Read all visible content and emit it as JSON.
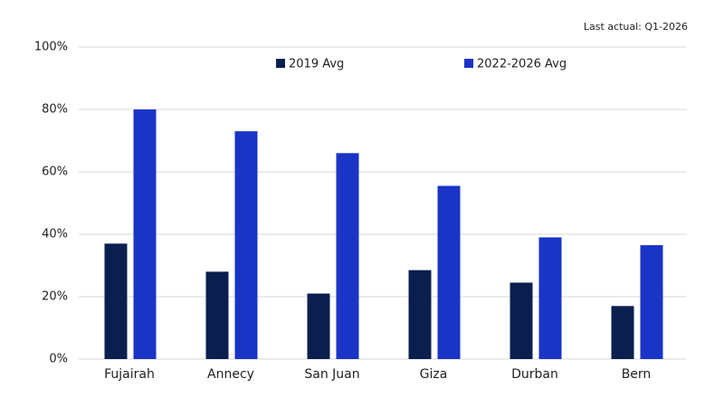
{
  "chart_data": {
    "type": "bar",
    "annotation": "Last actual: Q1-2026",
    "categories": [
      "Fujairah",
      "Annecy",
      "San Juan",
      "Giza",
      "Durban",
      "Bern"
    ],
    "series": [
      {
        "name": "2019 Avg",
        "color": "#0b1f4f",
        "values": [
          37,
          28,
          21,
          28.5,
          24.5,
          17
        ]
      },
      {
        "name": "2022-2026 Avg",
        "color": "#1a34c6",
        "values": [
          80,
          73,
          66,
          55.5,
          39,
          36.5
        ]
      }
    ],
    "ylim": [
      0,
      100
    ],
    "yticks": [
      {
        "value": 0,
        "label": "0%"
      },
      {
        "value": 20,
        "label": "20%"
      },
      {
        "value": 40,
        "label": "40%"
      },
      {
        "value": 60,
        "label": "60%"
      },
      {
        "value": 80,
        "label": "80%"
      },
      {
        "value": 100,
        "label": "100%"
      }
    ],
    "grid": true,
    "legend": "top"
  }
}
